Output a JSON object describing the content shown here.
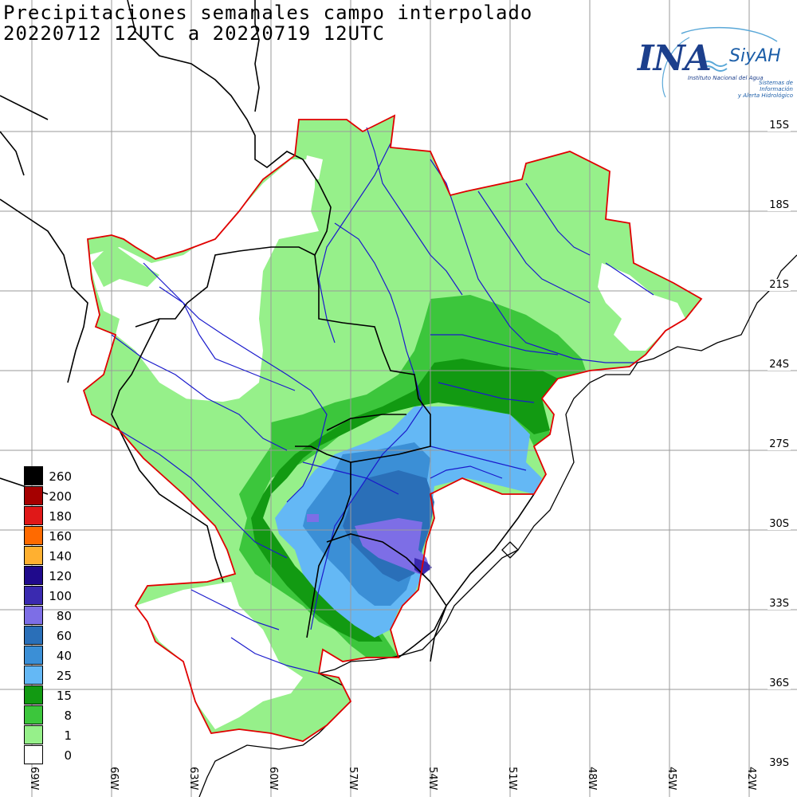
{
  "title": {
    "line1": "Precipitaciones semanales campo interpolado",
    "line2": "20220712 12UTC a 20220719 12UTC"
  },
  "logo": {
    "name": "INA",
    "system": "SiyAH",
    "institute": "Instituto Nacional del Agua",
    "system_desc_1": "Sistemas de Información",
    "system_desc_2": "y Alerta Hidrológico"
  },
  "lat_labels": [
    "15S",
    "18S",
    "21S",
    "24S",
    "27S",
    "30S",
    "33S",
    "36S",
    "39S"
  ],
  "lon_labels": [
    "69W",
    "66W",
    "63W",
    "60W",
    "57W",
    "54W",
    "51W",
    "48W",
    "45W",
    "42W"
  ],
  "legend": [
    {
      "label": "260",
      "color": "#000000"
    },
    {
      "label": "200",
      "color": "#a50000"
    },
    {
      "label": "180",
      "color": "#e01818"
    },
    {
      "label": "160",
      "color": "#ff6a00"
    },
    {
      "label": "140",
      "color": "#ffb030"
    },
    {
      "label": "120",
      "color": "#1f0a8c"
    },
    {
      "label": "100",
      "color": "#3a2ab0"
    },
    {
      "label": "80",
      "color": "#7d6ee6"
    },
    {
      "label": "60",
      "color": "#2a6fb8"
    },
    {
      "label": "40",
      "color": "#3b8fd6"
    },
    {
      "label": "25",
      "color": "#64b8f5"
    },
    {
      "label": "15",
      "color": "#129a12"
    },
    {
      "label": "8",
      "color": "#3cc63c"
    },
    {
      "label": "1",
      "color": "#96f08a"
    },
    {
      "label": "0",
      "color": "#ffffff"
    }
  ],
  "colors": {
    "basin_outline": "#e00000",
    "rivers": "#1a1acc",
    "borders": "#000000",
    "grid": "#9a9a9a"
  }
}
